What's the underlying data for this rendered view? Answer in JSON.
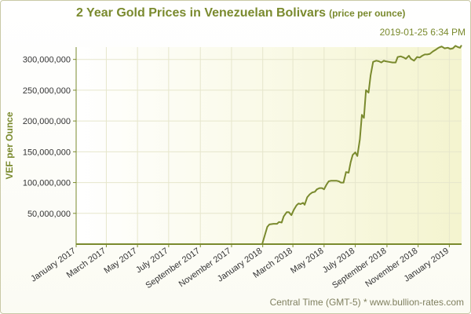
{
  "header": {
    "title": "2 Year Gold Prices in Venezuelan Bolivars",
    "subtitle": "(price per ounce)",
    "timestamp": "2019-01-25 6:34 PM"
  },
  "footer": {
    "text": "Central Time (GMT-5) * www.bullion-rates.com"
  },
  "colors": {
    "line": "#7a8a2e",
    "grid": "#e6e6cc",
    "axis": "#7a8a2e",
    "bg_left": "#ffffff",
    "bg_right": "#f4f4cf"
  },
  "chart_data": {
    "type": "line",
    "title": "2 Year Gold Prices in Venezuelan Bolivars",
    "subtitle": "(price per ounce)",
    "ylabel": "VEF per Ounce",
    "xlabel": "",
    "ylim": [
      0,
      320000000
    ],
    "yticks": [
      50000000,
      100000000,
      150000000,
      200000000,
      250000000,
      300000000
    ],
    "ytick_labels": [
      "50,000,000",
      "100,000,000",
      "150,000,000",
      "200,000,000",
      "250,000,000",
      "300,000,000"
    ],
    "xlim": [
      "2017-01-01",
      "2019-01-25"
    ],
    "xticks": [
      "2017-01-01",
      "2017-03-01",
      "2017-05-01",
      "2017-07-01",
      "2017-09-01",
      "2017-11-01",
      "2018-01-01",
      "2018-03-01",
      "2018-05-01",
      "2018-07-01",
      "2018-09-01",
      "2018-11-01",
      "2019-01-01"
    ],
    "xtick_labels": [
      "January 2017",
      "March 2017",
      "May 2017",
      "July 2017",
      "September 2017",
      "November 2017",
      "January 2018",
      "March 2018",
      "May 2018",
      "July 2018",
      "September 2018",
      "November 2018",
      "January 2019"
    ],
    "grid": true,
    "series": [
      {
        "x": [
          "2017-01-25",
          "2017-06-01",
          "2017-12-31",
          "2018-01-10",
          "2018-01-14",
          "2018-01-22",
          "2018-01-29",
          "2018-02-02",
          "2018-02-07",
          "2018-02-11",
          "2018-02-17",
          "2018-02-21",
          "2018-02-26",
          "2018-03-03",
          "2018-03-08",
          "2018-03-12",
          "2018-03-16",
          "2018-03-21",
          "2018-03-24",
          "2018-03-29",
          "2018-04-03",
          "2018-04-08",
          "2018-04-13",
          "2018-04-17",
          "2018-04-22",
          "2018-04-27",
          "2018-05-01",
          "2018-05-06",
          "2018-05-10",
          "2018-05-15",
          "2018-05-19",
          "2018-05-25",
          "2018-05-30",
          "2018-06-03",
          "2018-06-08",
          "2018-06-13",
          "2018-06-18",
          "2018-06-22",
          "2018-06-26",
          "2018-07-01",
          "2018-07-05",
          "2018-07-10",
          "2018-07-14",
          "2018-07-18",
          "2018-07-22",
          "2018-07-27",
          "2018-07-31",
          "2018-08-05",
          "2018-08-11",
          "2018-08-16",
          "2018-08-21",
          "2018-08-26",
          "2018-08-29",
          "2018-09-05",
          "2018-09-12",
          "2018-09-18",
          "2018-09-22",
          "2018-09-28",
          "2018-10-04",
          "2018-10-08",
          "2018-10-14",
          "2018-10-18",
          "2018-10-24",
          "2018-10-30",
          "2018-11-04",
          "2018-11-09",
          "2018-11-14",
          "2018-11-19",
          "2018-11-24",
          "2018-11-30",
          "2018-12-06",
          "2018-12-11",
          "2018-12-17",
          "2018-12-23",
          "2018-12-29",
          "2019-01-03",
          "2019-01-08",
          "2019-01-13",
          "2019-01-18",
          "2019-01-22",
          "2019-01-25"
        ],
        "y": [
          0,
          0,
          0,
          28000000,
          32000000,
          33000000,
          33000000,
          36000000,
          35000000,
          45000000,
          52000000,
          52000000,
          47000000,
          56000000,
          63000000,
          66000000,
          65000000,
          67000000,
          64000000,
          76000000,
          81000000,
          84000000,
          85000000,
          89000000,
          91000000,
          91000000,
          89000000,
          97000000,
          102000000,
          103000000,
          103000000,
          103000000,
          102000000,
          100000000,
          100000000,
          117000000,
          116000000,
          133000000,
          145000000,
          149000000,
          143000000,
          170000000,
          210000000,
          205000000,
          250000000,
          246000000,
          274000000,
          296000000,
          298000000,
          297000000,
          295000000,
          298000000,
          297000000,
          296000000,
          295000000,
          295000000,
          304000000,
          305000000,
          303000000,
          301000000,
          306000000,
          301000000,
          298000000,
          304000000,
          303000000,
          306000000,
          308000000,
          308000000,
          309000000,
          313000000,
          316000000,
          319000000,
          321000000,
          318000000,
          319000000,
          317000000,
          318000000,
          322000000,
          320000000,
          319000000,
          323000000
        ]
      }
    ]
  }
}
